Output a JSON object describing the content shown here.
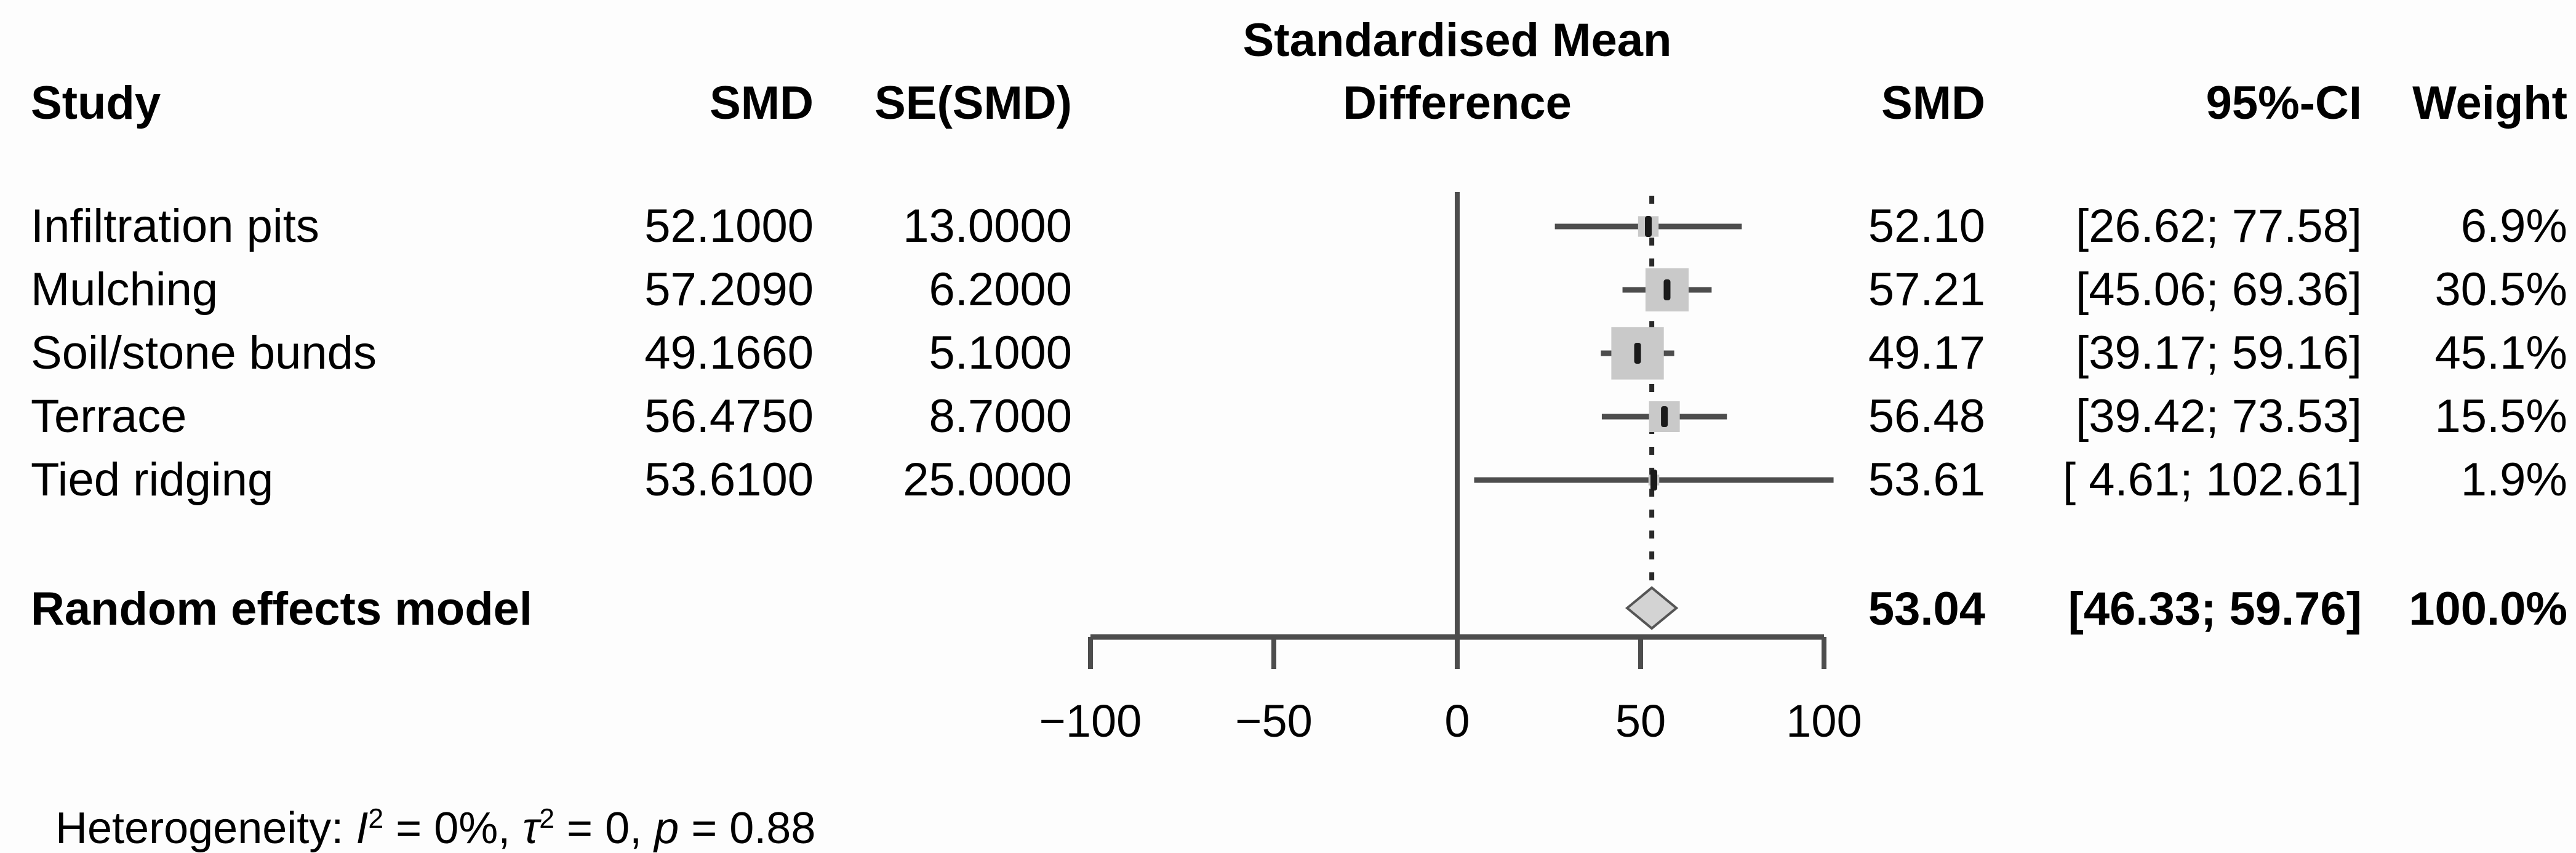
{
  "header": {
    "plot_title_line1": "Standardised Mean",
    "plot_title_line2": "Difference",
    "col_study": "Study",
    "col_smd_input": "SMD",
    "col_se": "SE(SMD)",
    "col_smd": "SMD",
    "col_ci": "95%-CI",
    "col_weight": "Weight"
  },
  "rows": [
    {
      "study": "Infiltration pits",
      "smd_input": "52.1000",
      "se": "13.0000",
      "smd": "52.10",
      "ci": "[26.62; 77.58]",
      "weight": "6.9%"
    },
    {
      "study": "Mulching",
      "smd_input": "57.2090",
      "se": "6.2000",
      "smd": "57.21",
      "ci": "[45.06; 69.36]",
      "weight": "30.5%"
    },
    {
      "study": "Soil/stone bunds",
      "smd_input": "49.1660",
      "se": "5.1000",
      "smd": "49.17",
      "ci": "[39.17; 59.16]",
      "weight": "45.1%"
    },
    {
      "study": "Terrace",
      "smd_input": "56.4750",
      "se": "8.7000",
      "smd": "56.48",
      "ci": "[39.42; 73.53]",
      "weight": "15.5%"
    },
    {
      "study": "Tied ridging",
      "smd_input": "53.6100",
      "se": "25.0000",
      "smd": "53.61",
      "ci": "[ 4.61; 102.61]",
      "weight": "1.9%"
    }
  ],
  "summary": {
    "label": "Random effects model",
    "smd": "53.04",
    "ci": "[46.33; 59.76]",
    "weight": "100.0%"
  },
  "heterogeneity": {
    "prefix": "Heterogeneity: ",
    "i_sym": "I",
    "i_exp": "2",
    "seg1": " = 0%, ",
    "tau_sym": "τ",
    "tau_exp": "2",
    "seg2": " = 0, ",
    "p_sym": "p",
    "seg3": " = 0.88"
  },
  "chart_data": {
    "type": "forest",
    "title": "Standardised Mean Difference",
    "x_axis": {
      "xlim": [
        -100,
        100
      ],
      "ticks": [
        -100,
        -50,
        0,
        50,
        100
      ],
      "tick_labels": [
        "−100",
        "−50",
        "0",
        "50",
        "100"
      ]
    },
    "zero_line_x": 0,
    "dashed_line_x": 53.04,
    "studies": [
      {
        "name": "Infiltration pits",
        "est": 52.1,
        "lo": 26.62,
        "hi": 77.58,
        "weight_pct": 6.9
      },
      {
        "name": "Mulching",
        "est": 57.21,
        "lo": 45.06,
        "hi": 69.36,
        "weight_pct": 30.5
      },
      {
        "name": "Soil/stone bunds",
        "est": 49.17,
        "lo": 39.17,
        "hi": 59.16,
        "weight_pct": 45.1
      },
      {
        "name": "Terrace",
        "est": 56.48,
        "lo": 39.42,
        "hi": 73.53,
        "weight_pct": 15.5
      },
      {
        "name": "Tied ridging",
        "est": 53.61,
        "lo": 4.61,
        "hi": 102.61,
        "weight_pct": 1.9
      }
    ],
    "summary": {
      "name": "Random effects model",
      "est": 53.04,
      "lo": 46.33,
      "hi": 59.76,
      "weight_pct": 100.0
    },
    "heterogeneity_text": "Heterogeneity: I2 = 0%, tau2 = 0, p = 0.88",
    "colors": {
      "line": "#4d4d4d",
      "marker": "#1a1a1a",
      "square": "#c9c9c9",
      "diamond_fill": "#d3d3d3",
      "diamond_border": "#555555",
      "dashed_line": "#2a2a2a"
    }
  }
}
